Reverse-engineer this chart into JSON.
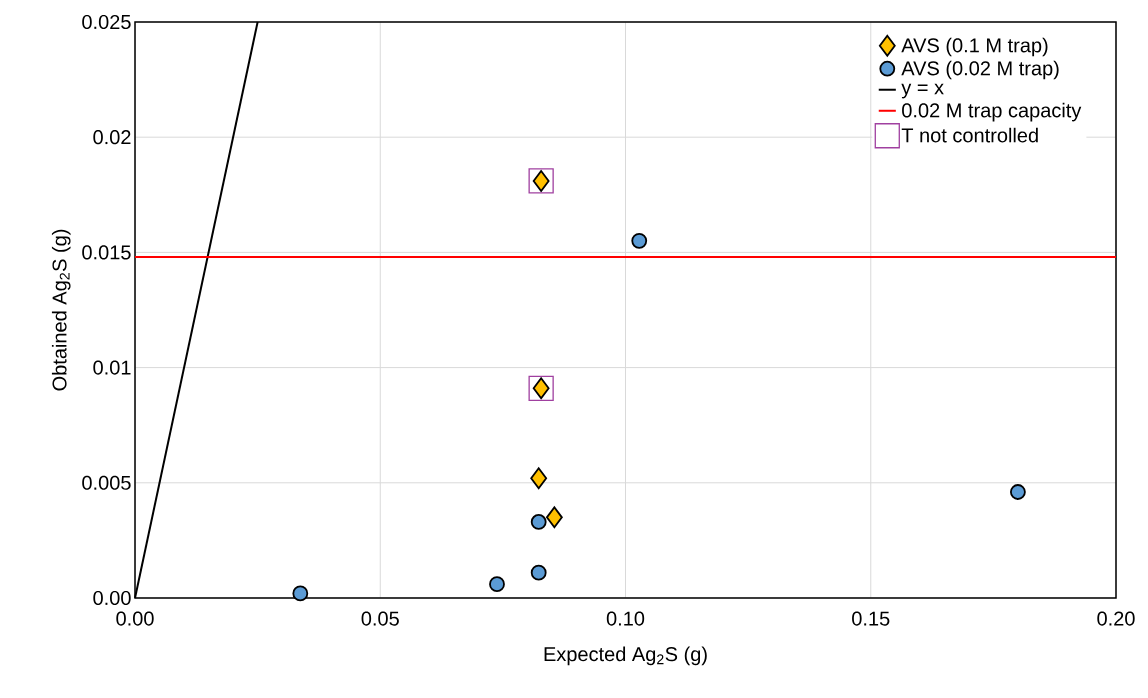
{
  "chart_data": {
    "type": "scatter",
    "xlabel": "Expected Ag$_{2}$S (g)",
    "ylabel": "Obtained Ag$_{2}$S (g)",
    "xlim": [
      0,
      0.2
    ],
    "ylim": [
      0,
      0.025
    ],
    "xticks": [
      {
        "value": 0,
        "label": "0.00"
      },
      {
        "value": 0.05,
        "label": "0.05"
      },
      {
        "value": 0.1,
        "label": "0.10"
      },
      {
        "value": 0.15,
        "label": "0.15"
      },
      {
        "value": 0.2,
        "label": "0.20"
      }
    ],
    "yticks": [
      {
        "value": 0,
        "label": "0.00"
      },
      0.005,
      0.01,
      0.015,
      0.02,
      0.025
    ],
    "grid": true,
    "legend": "top right",
    "series": [
      {
        "name": "AVS (0.1 M trap)",
        "marker": "diamond",
        "color": "#ffc000",
        "x": [
          0.0828,
          0.0828,
          0.0823,
          0.0855
        ],
        "values": [
          0.0181,
          0.0091,
          0.0052,
          0.0035
        ]
      },
      {
        "name": "AVS (0.02 M trap)",
        "marker": "circle",
        "color": "#5b9bd5",
        "x": [
          0.1028,
          0.18,
          0.0823,
          0.0823,
          0.0738,
          0.0337
        ],
        "values": [
          0.0155,
          0.0046,
          0.0033,
          0.0011,
          0.0006,
          0.0002
        ]
      },
      {
        "name": "y = x",
        "type": "line",
        "marker": "none",
        "color": "#000000",
        "x": [
          0,
          0.025
        ],
        "values": [
          0,
          0.025
        ]
      },
      {
        "name": "0.02 M trap capacity",
        "type": "line",
        "marker": "none",
        "color": "#ff0000",
        "x": [
          0,
          0.2
        ],
        "values": [
          0.0148,
          0.0148
        ]
      },
      {
        "name": "T not controlled",
        "marker": "square",
        "color": "#a040a0",
        "x": [
          0.0828,
          0.0828
        ],
        "values": [
          0.0181,
          0.0091
        ]
      }
    ]
  }
}
